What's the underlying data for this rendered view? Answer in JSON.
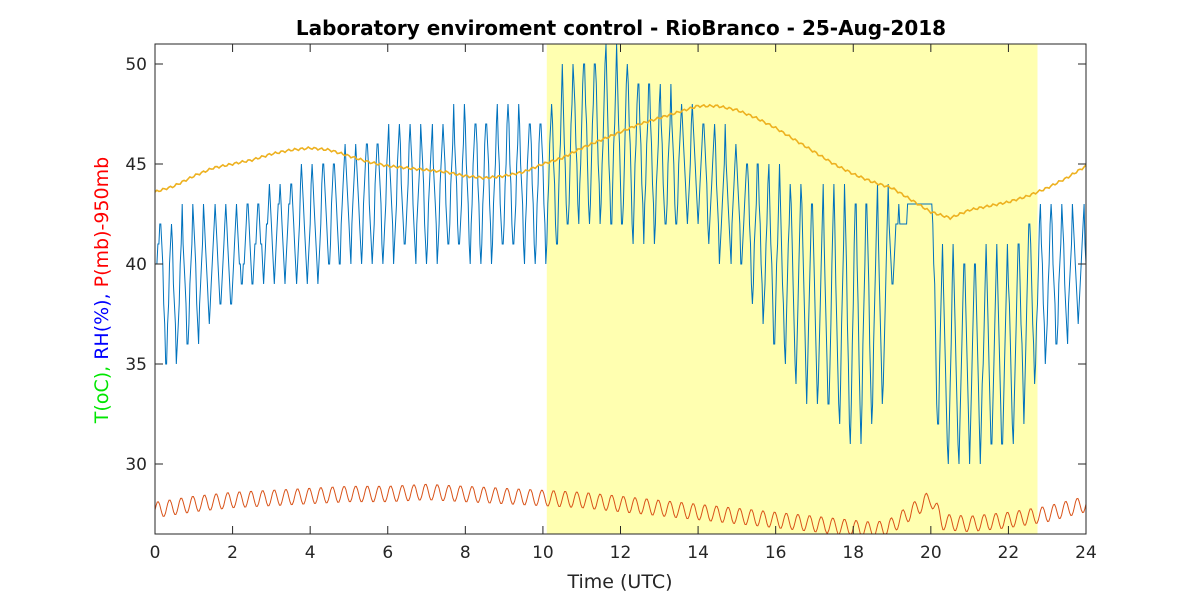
{
  "chart_data": {
    "type": "line",
    "title": "Laboratory enviroment control - RioBranco - 25-Aug-2018",
    "xlabel": "Time (UTC)",
    "ylabel_parts": [
      {
        "text": "T(oC), ",
        "color": "#00e600"
      },
      {
        "text": "RH(%), ",
        "color": "#0000ff"
      },
      {
        "text": "P(mb)-950mb",
        "color": "#ff0000"
      }
    ],
    "xlim": [
      0,
      24
    ],
    "ylim": [
      26.5,
      51
    ],
    "xticks": [
      0,
      2,
      4,
      6,
      8,
      10,
      12,
      14,
      16,
      18,
      20,
      22,
      24
    ],
    "yticks": [
      30,
      35,
      40,
      45,
      50
    ],
    "grid": false,
    "highlight_band": {
      "x_start": 10.1,
      "x_end": 22.75,
      "color": "#ffffb0"
    },
    "series": [
      {
        "color": "#0072bd",
        "stepped_oscillating": true,
        "envelope_x": [
          0,
          0.3,
          1,
          2,
          3,
          4,
          5,
          6,
          7,
          8,
          9,
          10,
          10.3,
          11,
          12,
          13,
          14,
          14.5,
          15,
          16,
          17,
          18,
          18.9,
          19.1,
          20,
          20.2,
          21,
          22,
          22.5,
          23,
          24
        ],
        "envelope_lo": [
          40,
          34,
          36,
          38,
          39,
          39,
          40,
          40,
          40,
          40,
          40,
          40,
          40,
          42,
          41,
          41,
          42,
          40,
          40,
          35,
          33,
          30,
          33,
          42,
          43,
          29,
          30,
          30,
          33,
          35,
          37
        ],
        "envelope_hi": [
          43,
          42,
          43,
          43,
          44,
          45,
          46,
          47,
          47,
          48,
          48,
          48,
          49,
          51,
          51,
          49,
          48,
          47,
          46,
          45,
          44,
          44,
          44,
          42.5,
          43,
          41,
          41,
          41,
          43,
          43,
          43
        ]
      },
      {
        "color": "#edb120",
        "x": [
          0,
          0.5,
          1,
          1.5,
          2,
          2.5,
          3,
          3.5,
          4,
          4.5,
          5,
          5.5,
          6,
          6.5,
          7,
          7.5,
          8,
          8.5,
          9,
          9.5,
          10,
          10.5,
          11,
          11.5,
          12,
          12.5,
          13,
          13.5,
          14,
          14.5,
          15,
          15.5,
          16,
          16.5,
          17,
          17.5,
          18,
          18.5,
          19,
          19.5,
          20,
          20.5,
          21,
          21.5,
          22,
          22.5,
          23,
          23.5,
          24
        ],
        "y": [
          43.6,
          43.9,
          44.4,
          44.8,
          45.0,
          45.2,
          45.5,
          45.7,
          45.8,
          45.7,
          45.4,
          45.1,
          44.9,
          44.8,
          44.7,
          44.6,
          44.4,
          44.3,
          44.4,
          44.6,
          45.0,
          45.3,
          45.8,
          46.2,
          46.6,
          47.0,
          47.3,
          47.6,
          47.9,
          47.9,
          47.7,
          47.3,
          46.8,
          46.2,
          45.6,
          45.0,
          44.5,
          44.1,
          43.8,
          43.2,
          42.6,
          42.3,
          42.7,
          42.9,
          43.1,
          43.4,
          43.8,
          44.3,
          44.9
        ]
      },
      {
        "color": "#d95319",
        "oscillation_amplitude": 0.4,
        "x": [
          0,
          1,
          2,
          3,
          4,
          5,
          6,
          7,
          8,
          9,
          10,
          11,
          12,
          13,
          14,
          15,
          16,
          17,
          17.5,
          18,
          18.5,
          18.9,
          20,
          20.3,
          21,
          22,
          23,
          24
        ],
        "y": [
          27.7,
          28.0,
          28.2,
          28.3,
          28.4,
          28.5,
          28.5,
          28.6,
          28.5,
          28.4,
          28.3,
          28.2,
          28.0,
          27.8,
          27.6,
          27.4,
          27.2,
          27.0,
          26.9,
          26.8,
          26.7,
          26.8,
          28.3,
          27.1,
          27.0,
          27.2,
          27.5,
          28.0
        ]
      }
    ]
  }
}
